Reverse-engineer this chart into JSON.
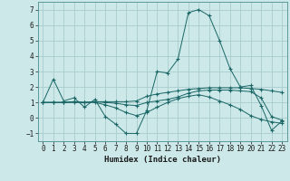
{
  "xlabel": "Humidex (Indice chaleur)",
  "xlim": [
    -0.5,
    23.5
  ],
  "ylim": [
    -1.5,
    7.5
  ],
  "yticks": [
    -1,
    0,
    1,
    2,
    3,
    4,
    5,
    6,
    7
  ],
  "xticks": [
    0,
    1,
    2,
    3,
    4,
    5,
    6,
    7,
    8,
    9,
    10,
    11,
    12,
    13,
    14,
    15,
    16,
    17,
    18,
    19,
    20,
    21,
    22,
    23
  ],
  "bg_color": "#cce8e8",
  "grid_color": "#aacccc",
  "line_color": "#1a6666",
  "line1_y": [
    1.0,
    2.5,
    1.1,
    1.3,
    0.7,
    1.2,
    0.1,
    -0.4,
    -1.0,
    -1.0,
    0.5,
    3.0,
    2.9,
    3.8,
    6.8,
    7.0,
    6.6,
    5.0,
    3.2,
    2.0,
    2.1,
    0.8,
    -0.8,
    -0.2
  ],
  "line2_y": [
    1.0,
    1.0,
    1.0,
    1.05,
    1.0,
    1.05,
    1.05,
    1.05,
    1.05,
    1.1,
    1.4,
    1.55,
    1.65,
    1.75,
    1.85,
    1.9,
    1.95,
    1.95,
    1.95,
    1.95,
    1.9,
    1.85,
    1.75,
    1.65
  ],
  "line3_y": [
    1.0,
    1.0,
    1.0,
    1.05,
    1.0,
    1.05,
    1.0,
    0.95,
    0.85,
    0.8,
    1.0,
    1.1,
    1.2,
    1.35,
    1.6,
    1.75,
    1.8,
    1.8,
    1.8,
    1.75,
    1.7,
    1.3,
    0.1,
    -0.15
  ],
  "line4_y": [
    1.0,
    1.0,
    1.0,
    1.0,
    1.0,
    1.0,
    0.85,
    0.65,
    0.35,
    0.15,
    0.35,
    0.7,
    1.0,
    1.25,
    1.4,
    1.5,
    1.35,
    1.1,
    0.85,
    0.55,
    0.15,
    -0.1,
    -0.25,
    -0.35
  ]
}
